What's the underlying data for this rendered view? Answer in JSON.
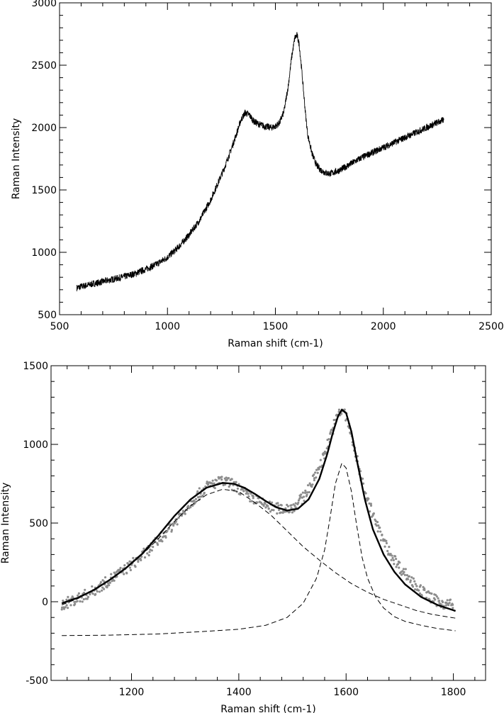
{
  "chart_data": [
    {
      "type": "line",
      "title": "",
      "xlabel": "Raman shift (cm-1)",
      "ylabel": "Raman Intensity",
      "xlim": [
        500,
        2500
      ],
      "ylim": [
        500,
        3000
      ],
      "xticks": [
        500,
        1000,
        1500,
        2000,
        2500
      ],
      "yticks": [
        500,
        1000,
        1500,
        2000,
        2500,
        3000
      ],
      "grid": false,
      "series": [
        {
          "color": "#000000",
          "style": "solid-noisy",
          "x": [
            580,
            600,
            650,
            700,
            750,
            800,
            850,
            900,
            950,
            1000,
            1050,
            1100,
            1150,
            1200,
            1230,
            1260,
            1290,
            1320,
            1340,
            1360,
            1380,
            1400,
            1420,
            1450,
            1480,
            1500,
            1520,
            1540,
            1560,
            1575,
            1590,
            1600,
            1610,
            1620,
            1630,
            1640,
            1650,
            1670,
            1690,
            1710,
            1730,
            1750,
            1770,
            1800,
            1850,
            1900,
            1950,
            2000,
            2050,
            2100,
            2150,
            2200,
            2250,
            2280
          ],
          "y": [
            715,
            725,
            745,
            765,
            785,
            805,
            830,
            865,
            905,
            960,
            1040,
            1140,
            1260,
            1420,
            1540,
            1660,
            1800,
            1950,
            2060,
            2120,
            2100,
            2050,
            2030,
            2010,
            2000,
            2010,
            2040,
            2130,
            2340,
            2560,
            2720,
            2740,
            2670,
            2500,
            2300,
            2100,
            1940,
            1790,
            1700,
            1660,
            1640,
            1630,
            1640,
            1660,
            1710,
            1760,
            1800,
            1840,
            1880,
            1920,
            1960,
            2000,
            2040,
            2060
          ]
        }
      ]
    },
    {
      "type": "line",
      "title": "",
      "xlabel": "Raman shift (cm-1)",
      "ylabel": "Raman Intensity",
      "xlim": [
        1050,
        1860
      ],
      "ylim": [
        -500,
        1500
      ],
      "xticks": [
        1200,
        1400,
        1600,
        1800
      ],
      "yticks": [
        -500,
        0,
        500,
        1000,
        1500
      ],
      "grid": false,
      "series": [
        {
          "style": "scatter",
          "color": "#8c8c8c",
          "x": [
            1070,
            1100,
            1130,
            1160,
            1190,
            1220,
            1250,
            1280,
            1310,
            1340,
            1360,
            1380,
            1400,
            1420,
            1440,
            1460,
            1480,
            1500,
            1520,
            1540,
            1560,
            1575,
            1585,
            1595,
            1605,
            1620,
            1640,
            1660,
            1680,
            1700,
            1720,
            1740,
            1760,
            1780,
            1800
          ],
          "y": [
            -20,
            20,
            70,
            140,
            210,
            290,
            390,
            500,
            630,
            730,
            760,
            760,
            720,
            670,
            630,
            600,
            590,
            600,
            660,
            780,
            940,
            1100,
            1190,
            1220,
            1120,
            900,
            650,
            460,
            320,
            220,
            140,
            70,
            20,
            -10,
            -20
          ]
        },
        {
          "style": "solid",
          "color": "#000000",
          "x": [
            1070,
            1100,
            1130,
            1160,
            1190,
            1220,
            1250,
            1280,
            1310,
            1340,
            1370,
            1390,
            1410,
            1430,
            1450,
            1470,
            1490,
            1510,
            1530,
            1550,
            1565,
            1575,
            1585,
            1592,
            1600,
            1610,
            1620,
            1635,
            1650,
            1670,
            1690,
            1710,
            1740,
            1770,
            1805
          ],
          "y": [
            -10,
            25,
            75,
            140,
            215,
            305,
            420,
            545,
            650,
            725,
            755,
            750,
            725,
            685,
            640,
            600,
            580,
            590,
            650,
            780,
            940,
            1070,
            1180,
            1220,
            1200,
            1080,
            900,
            650,
            460,
            300,
            190,
            110,
            30,
            -20,
            -60
          ]
        },
        {
          "style": "dashed",
          "color": "#000000",
          "x": [
            1070,
            1100,
            1130,
            1160,
            1190,
            1220,
            1250,
            1280,
            1310,
            1340,
            1370,
            1400,
            1430,
            1460,
            1490,
            1520,
            1550,
            1580,
            1610,
            1640,
            1670,
            1700,
            1730,
            1760,
            1805
          ],
          "y": [
            -20,
            20,
            75,
            140,
            215,
            300,
            400,
            510,
            610,
            680,
            715,
            700,
            630,
            550,
            450,
            350,
            265,
            185,
            115,
            60,
            15,
            -20,
            -55,
            -80,
            -105
          ]
        },
        {
          "style": "dashed",
          "color": "#000000",
          "x": [
            1070,
            1150,
            1250,
            1330,
            1400,
            1450,
            1490,
            1520,
            1545,
            1560,
            1570,
            1580,
            1592,
            1600,
            1610,
            1620,
            1630,
            1640,
            1655,
            1670,
            1690,
            1710,
            1740,
            1770,
            1805
          ],
          "y": [
            -215,
            -213,
            -205,
            -190,
            -175,
            -150,
            -100,
            -10,
            150,
            330,
            530,
            750,
            880,
            850,
            700,
            480,
            280,
            150,
            30,
            -40,
            -95,
            -125,
            -150,
            -170,
            -185
          ]
        }
      ]
    }
  ]
}
